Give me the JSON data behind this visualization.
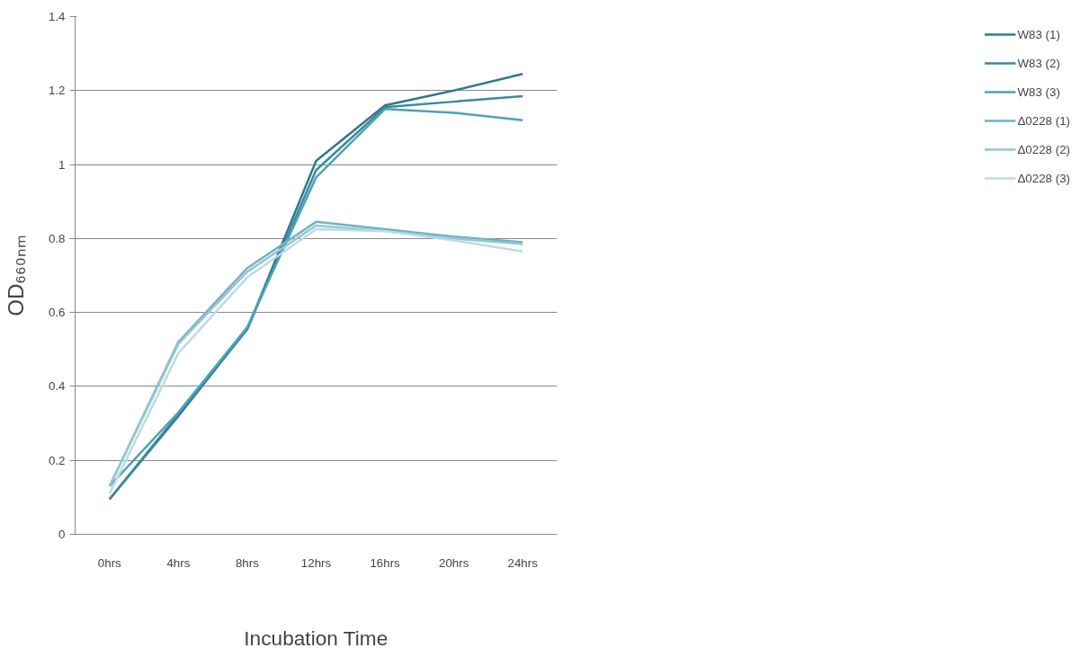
{
  "chart_data": {
    "type": "line",
    "xlabel": "Incubation Time",
    "ylabel": "OD₆₆₀ₙₘ",
    "categories": [
      "0hrs",
      "4hrs",
      "8hrs",
      "12hrs",
      "16hrs",
      "20hrs",
      "24hrs"
    ],
    "ylim": [
      0,
      1.4
    ],
    "yticks": [
      0,
      0.2,
      0.4,
      0.6,
      0.8,
      1,
      1.2,
      1.4
    ],
    "grid": "y",
    "legend": "right",
    "line_style": "solid",
    "marker": "none",
    "series": [
      {
        "name": "W83 (1)",
        "color": "#31788a",
        "values": [
          0.095,
          0.32,
          0.555,
          1.01,
          1.16,
          1.2,
          1.245
        ]
      },
      {
        "name": "W83 (2)",
        "color": "#3a8a9e",
        "values": [
          0.095,
          0.325,
          0.555,
          0.985,
          1.155,
          1.17,
          1.185
        ]
      },
      {
        "name": "W83 (3)",
        "color": "#4ba3b8",
        "values": [
          0.13,
          0.33,
          0.56,
          0.965,
          1.15,
          1.14,
          1.12
        ]
      },
      {
        "name": "Δ0228 (1)",
        "color": "#6db3c6",
        "values": [
          0.13,
          0.52,
          0.72,
          0.845,
          0.825,
          0.805,
          0.79
        ]
      },
      {
        "name": "Δ0228 (2)",
        "color": "#97c6d4",
        "values": [
          0.13,
          0.515,
          0.71,
          0.835,
          0.82,
          0.8,
          0.785
        ]
      },
      {
        "name": "Δ0228 (3)",
        "color": "#bcdbe5",
        "values": [
          0.11,
          0.49,
          0.695,
          0.825,
          0.82,
          0.795,
          0.765
        ]
      }
    ]
  }
}
